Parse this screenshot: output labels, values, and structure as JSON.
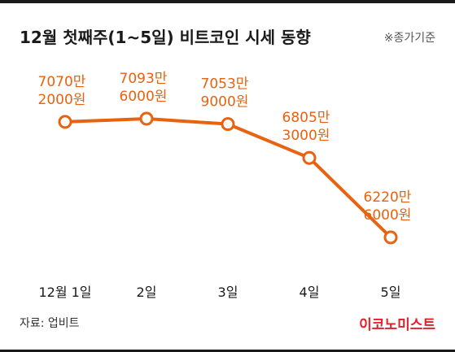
{
  "header": {
    "title": "12월 첫째주(1~5일) 비트코인 시세 동향",
    "note": "※종가기준"
  },
  "footer": {
    "source": "자료: 업비트",
    "brand": "이코노미스트"
  },
  "colors": {
    "series": "#e8620f",
    "brand": "#e3202a"
  },
  "chart_data": {
    "type": "line",
    "title": "12월 첫째주(1~5일) 비트코인 시세 동향",
    "xlabel": "",
    "ylabel": "",
    "categories": [
      "12월 1일",
      "2일",
      "3일",
      "4일",
      "5일"
    ],
    "values": [
      70702000,
      70936000,
      70539000,
      68053000,
      62206000
    ],
    "value_labels": [
      [
        "7070만",
        "2000원"
      ],
      [
        "7093만",
        "6000원"
      ],
      [
        "7053만",
        "9000원"
      ],
      [
        "6805만",
        "3000원"
      ],
      [
        "6220만",
        "6000원"
      ]
    ],
    "grid": false,
    "legend": "none"
  }
}
